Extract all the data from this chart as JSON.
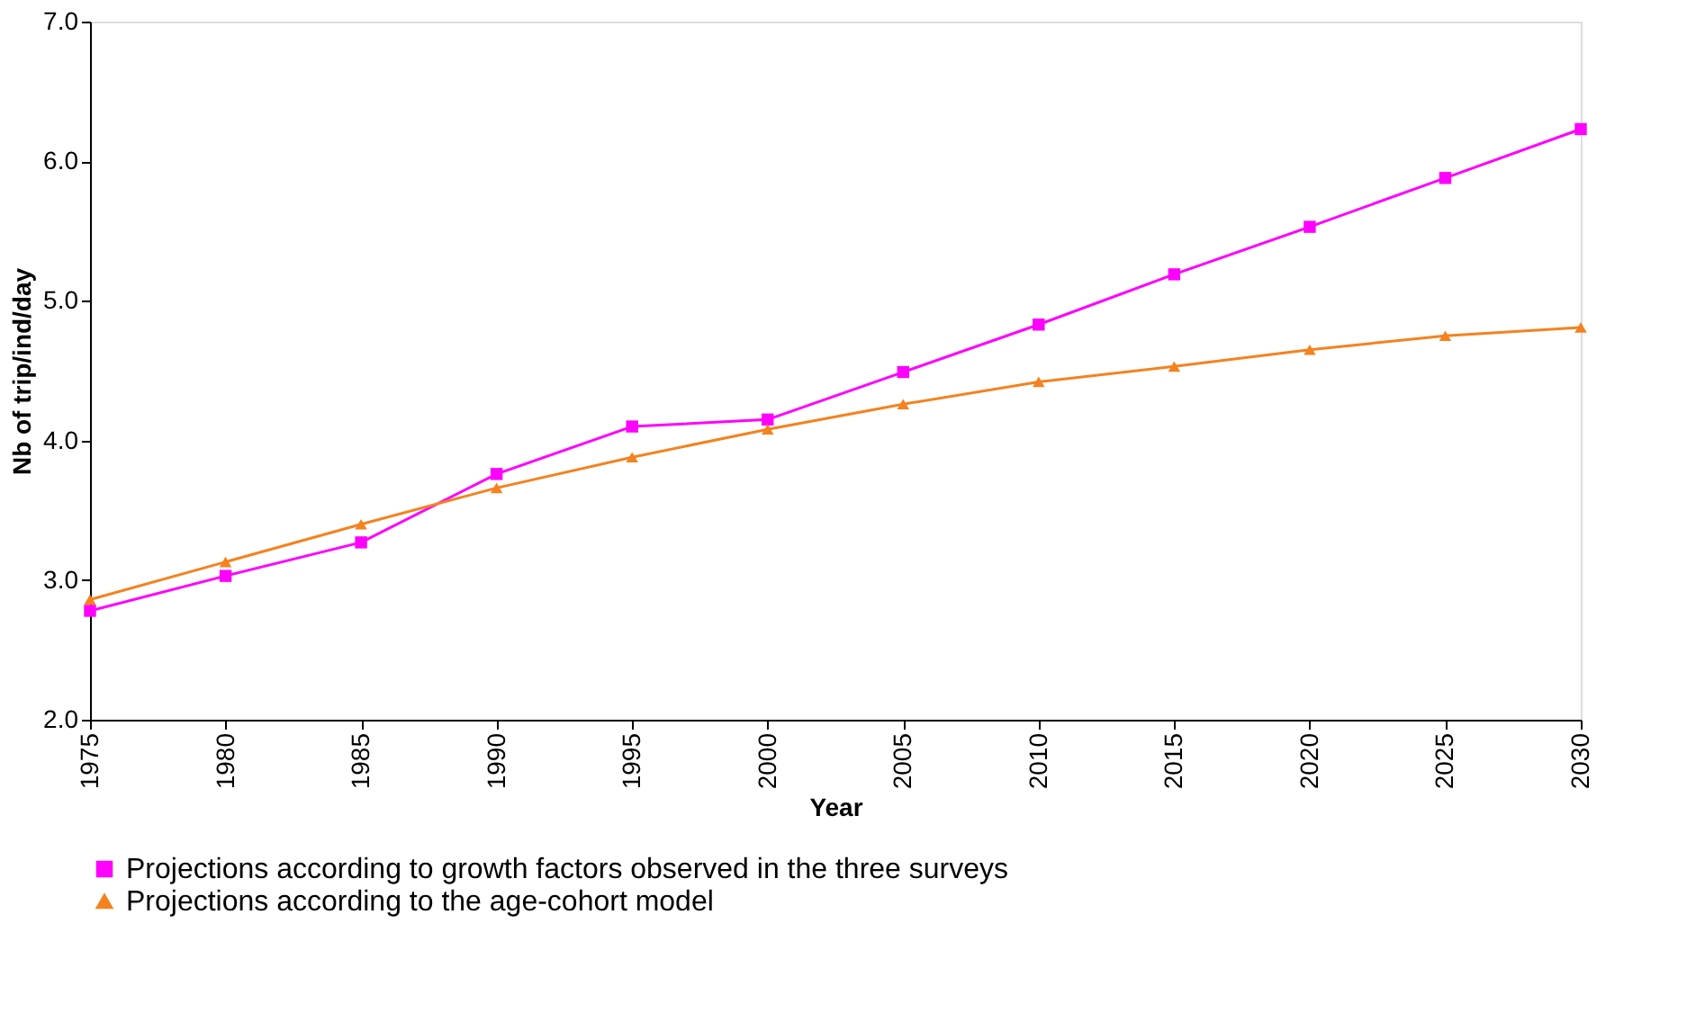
{
  "chart_data": {
    "type": "line",
    "xlabel": "Year",
    "ylabel": "Nb of trip/ind/day",
    "x": [
      1975,
      1980,
      1985,
      1990,
      1995,
      2000,
      2005,
      2010,
      2015,
      2020,
      2025,
      2030
    ],
    "series": [
      {
        "name": "Projections according to growth factors observed in the three surveys",
        "color": "#ff00ff",
        "marker": "square",
        "values": [
          2.78,
          3.03,
          3.27,
          3.76,
          4.1,
          4.15,
          4.49,
          4.83,
          5.19,
          5.53,
          5.88,
          6.23
        ]
      },
      {
        "name": "Projections according to the age-cohort model",
        "color": "#f5821f",
        "marker": "triangle",
        "values": [
          2.86,
          3.13,
          3.4,
          3.66,
          3.88,
          4.08,
          4.26,
          4.42,
          4.53,
          4.65,
          4.75,
          4.81
        ]
      }
    ],
    "xlim": [
      1975,
      2030
    ],
    "xticks": [
      1975,
      1980,
      1985,
      1990,
      1995,
      2000,
      2005,
      2010,
      2015,
      2020,
      2025,
      2030
    ],
    "ylim": [
      2,
      7
    ],
    "yticks": [
      {
        "value": 2,
        "label": "2.0"
      },
      {
        "value": 3,
        "label": "3.0"
      },
      {
        "value": 4,
        "label": "4.0"
      },
      {
        "value": 5,
        "label": "5.0"
      },
      {
        "value": 6,
        "label": "6.0"
      },
      {
        "value": 7,
        "label": "7.0"
      }
    ],
    "grid": false,
    "legend": "bottom",
    "line_style": "solid"
  }
}
